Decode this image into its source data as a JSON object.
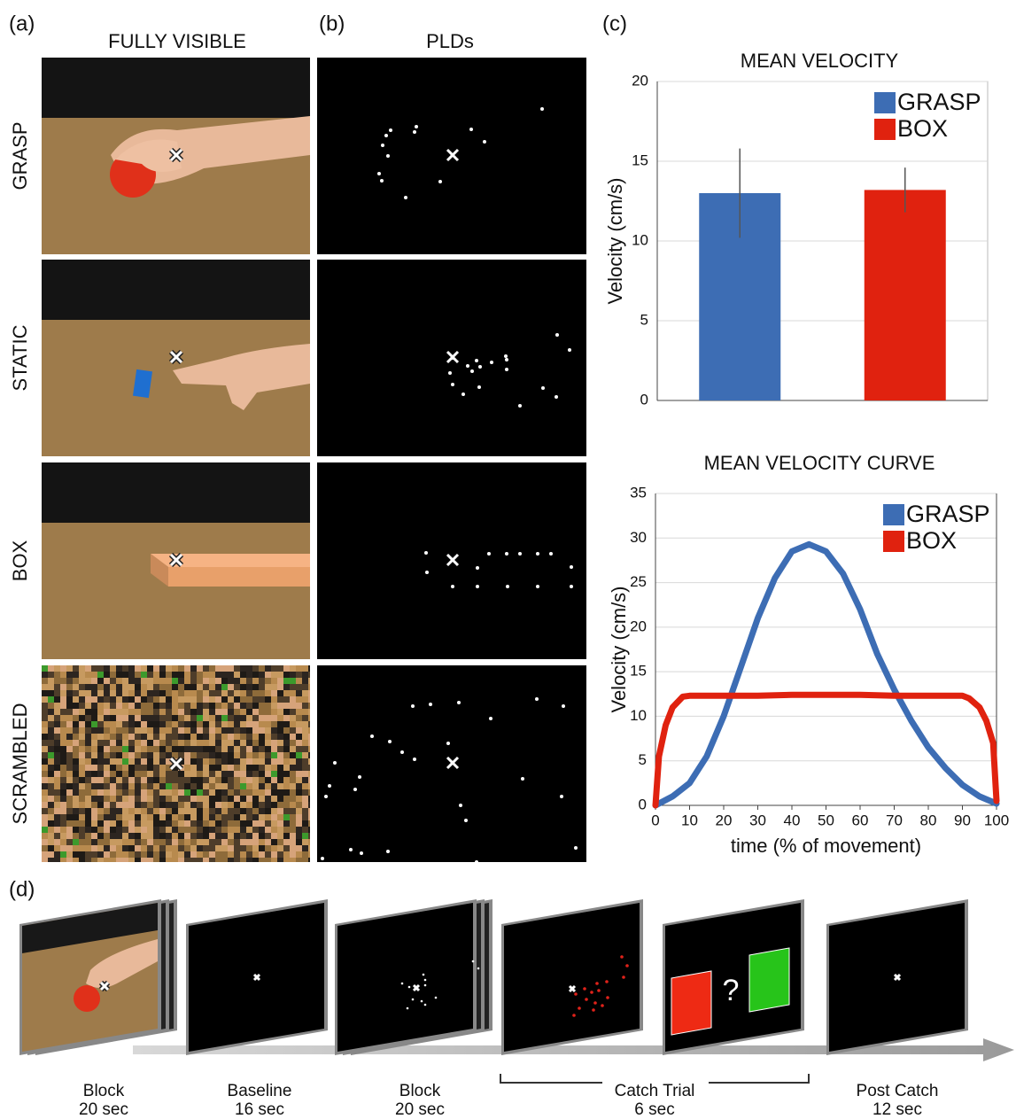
{
  "panels": {
    "a": {
      "label": "(a)",
      "title": "FULLY VISIBLE",
      "rows": [
        "GRASP",
        "STATIC",
        "BOX",
        "SCRAMBLED"
      ]
    },
    "b": {
      "label": "(b)",
      "title": "PLDs"
    },
    "c": {
      "label": "(c)"
    },
    "d": {
      "label": "(d)",
      "question": "?",
      "bracket_label": "Catch Trial",
      "bracket_duration": "6 sec",
      "frames": [
        {
          "name": "Block",
          "duration": "20 sec"
        },
        {
          "name": "Baseline",
          "duration": "16 sec"
        },
        {
          "name": "Block",
          "duration": "20 sec"
        },
        {
          "name": "Post Catch",
          "duration": "12 sec"
        }
      ]
    }
  },
  "chart_data": [
    {
      "type": "bar",
      "title": "MEAN VELOCITY",
      "y_label": "Velocity (cm/s)",
      "ylim": [
        0,
        20
      ],
      "yticks": [
        0,
        5,
        10,
        15,
        20
      ],
      "grid": true,
      "legend": "upper right",
      "series": [
        {
          "name": "GRASP",
          "color": "#3d6db4",
          "values": [
            13.0
          ],
          "errors": [
            2.8
          ]
        },
        {
          "name": "BOX",
          "color": "#e0220f",
          "values": [
            13.2
          ],
          "errors": [
            1.4
          ]
        }
      ]
    },
    {
      "type": "line",
      "title": "MEAN VELOCITY CURVE",
      "x_label": "time (% of movement)",
      "y_label": "Velocity (cm/s)",
      "xlim": [
        0,
        100
      ],
      "xticks": [
        0,
        10,
        20,
        30,
        40,
        50,
        60,
        70,
        80,
        90,
        100
      ],
      "ylim": [
        0,
        35
      ],
      "yticks": [
        0,
        5,
        10,
        15,
        20,
        25,
        30,
        35
      ],
      "grid": true,
      "legend": "upper right",
      "series": [
        {
          "name": "GRASP",
          "color": "#3d6db4",
          "x": [
            0,
            5,
            10,
            15,
            20,
            25,
            30,
            35,
            40,
            45,
            50,
            55,
            60,
            65,
            70,
            75,
            80,
            85,
            90,
            95,
            100
          ],
          "values": [
            0,
            1,
            2.5,
            5.5,
            10,
            15.5,
            21,
            25.5,
            28.5,
            29.3,
            28.5,
            26,
            22,
            17,
            13,
            9.5,
            6.5,
            4.2,
            2.3,
            1,
            0.2
          ]
        },
        {
          "name": "BOX",
          "color": "#e0220f",
          "x": [
            0,
            1,
            3,
            5,
            8,
            10,
            20,
            30,
            40,
            50,
            60,
            70,
            80,
            90,
            92,
            95,
            97,
            99,
            100
          ],
          "values": [
            0,
            5.5,
            9,
            11,
            12.2,
            12.3,
            12.3,
            12.3,
            12.4,
            12.4,
            12.4,
            12.3,
            12.3,
            12.3,
            12,
            11,
            9.5,
            7,
            0.5
          ]
        }
      ]
    }
  ]
}
